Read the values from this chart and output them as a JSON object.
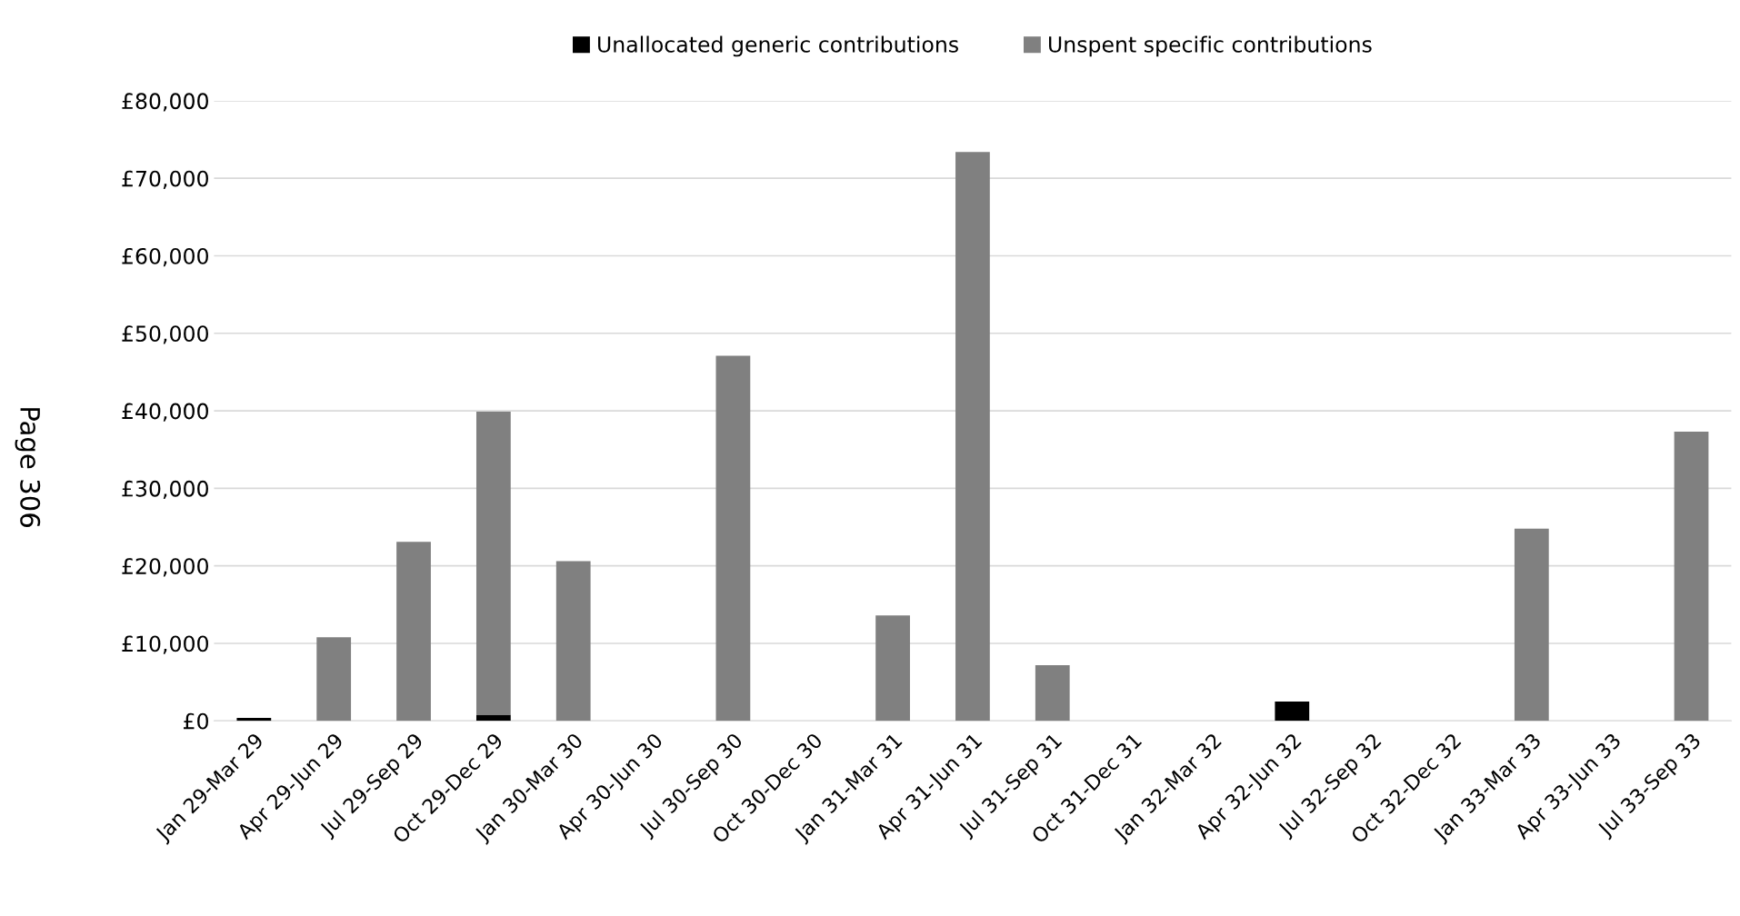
{
  "chart_data": {
    "type": "bar",
    "stacked": true,
    "categories": [
      "Jan 29-Mar 29",
      "Apr 29-Jun 29",
      "Jul 29-Sep 29",
      "Oct 29-Dec 29",
      "Jan 30-Mar 30",
      "Apr 30-Jun 30",
      "Jul 30-Sep 30",
      "Oct 30-Dec 30",
      "Jan 31-Mar 31",
      "Apr 31-Jun 31",
      "Jul 31-Sep 31",
      "Oct 31-Dec 31",
      "Jan 32-Mar 32",
      "Apr 32-Jun 32",
      "Jul 32-Sep 32",
      "Oct 32-Dec 32",
      "Jan 33-Mar 33",
      "Apr 33-Jun 33",
      "Jul 33-Sep 33"
    ],
    "series": [
      {
        "name": "Unallocated generic contributions",
        "color": "#000000",
        "values": [
          400,
          0,
          0,
          800,
          0,
          0,
          0,
          0,
          0,
          0,
          0,
          0,
          0,
          2500,
          0,
          0,
          0,
          0,
          0
        ]
      },
      {
        "name": "Unspent specific contributions",
        "color": "#808080",
        "values": [
          0,
          10800,
          23100,
          39100,
          20600,
          0,
          47100,
          0,
          13600,
          73400,
          7200,
          0,
          0,
          0,
          0,
          0,
          24800,
          0,
          37300
        ]
      }
    ],
    "ylim": [
      0,
      80000
    ],
    "yticks": [
      {
        "value": 0,
        "label": "£0"
      },
      {
        "value": 10000,
        "label": "£10,000"
      },
      {
        "value": 20000,
        "label": "£20,000"
      },
      {
        "value": 30000,
        "label": "£30,000"
      },
      {
        "value": 40000,
        "label": "£40,000"
      },
      {
        "value": 50000,
        "label": "£50,000"
      },
      {
        "value": 60000,
        "label": "£60,000"
      },
      {
        "value": 70000,
        "label": "£70,000"
      },
      {
        "value": 80000,
        "label": "£80,000"
      }
    ],
    "grid": "y",
    "legend": "top",
    "annotations": [
      "Page 306"
    ]
  }
}
